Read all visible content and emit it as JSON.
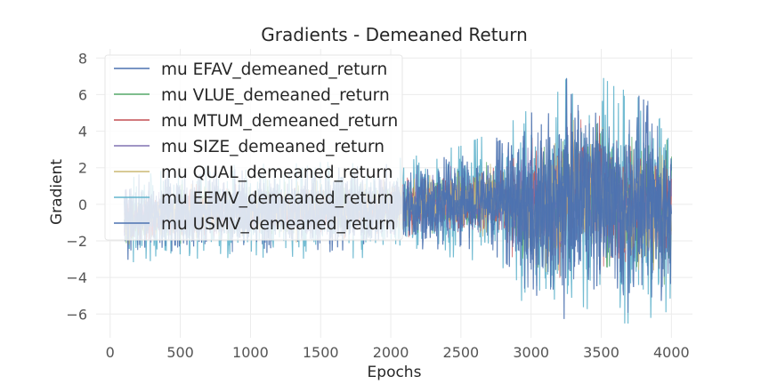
{
  "chart_data": {
    "type": "line",
    "title": "Gradients - Demeaned Return",
    "xlabel": "Epochs",
    "ylabel": "Gradient",
    "xlim": [
      -100,
      4150
    ],
    "ylim": [
      -7.3,
      8.5
    ],
    "xticks": [
      0,
      500,
      1000,
      1500,
      2000,
      2500,
      3000,
      3500,
      4000
    ],
    "yticks": [
      -6,
      -4,
      -2,
      0,
      2,
      4,
      6,
      8
    ],
    "xtick_labels": [
      "0",
      "500",
      "1000",
      "1500",
      "2000",
      "2500",
      "3000",
      "3500",
      "4000"
    ],
    "ytick_labels": [
      "−6",
      "−4",
      "−2",
      "0",
      "2",
      "4",
      "6",
      "8"
    ],
    "grid": true,
    "legend_position": "top-left",
    "series": [
      {
        "name": "mu EFAV_demeaned_return",
        "color": "#4c72b0"
      },
      {
        "name": "mu VLUE_demeaned_return",
        "color": "#55a868"
      },
      {
        "name": "mu MTUM_demeaned_return",
        "color": "#c44e52"
      },
      {
        "name": "mu SIZE_demeaned_return",
        "color": "#8172b2"
      },
      {
        "name": "mu QUAL_demeaned_return",
        "color": "#ccb974"
      },
      {
        "name": "mu EEMV_demeaned_return",
        "color": "#64b5cd"
      },
      {
        "name": "mu USMV_demeaned_return",
        "color": "#4c72b0"
      }
    ],
    "envelope_points": [
      {
        "x": 100,
        "min": -3.2,
        "max": 1.5
      },
      {
        "x": 500,
        "min": -3.0,
        "max": 2.0
      },
      {
        "x": 1000,
        "min": -2.9,
        "max": 2.2
      },
      {
        "x": 1500,
        "min": -3.0,
        "max": 2.3
      },
      {
        "x": 2000,
        "min": -2.9,
        "max": 2.5
      },
      {
        "x": 2500,
        "min": -2.9,
        "max": 3.2
      },
      {
        "x": 2800,
        "min": -3.5,
        "max": 4.2
      },
      {
        "x": 3000,
        "min": -6.2,
        "max": 5.3
      },
      {
        "x": 3200,
        "min": -6.6,
        "max": 6.2
      },
      {
        "x": 3340,
        "min": -5.5,
        "max": 8.0
      },
      {
        "x": 3600,
        "min": -6.5,
        "max": 6.4
      },
      {
        "x": 4000,
        "min": -6.6,
        "max": 5.5
      }
    ]
  }
}
